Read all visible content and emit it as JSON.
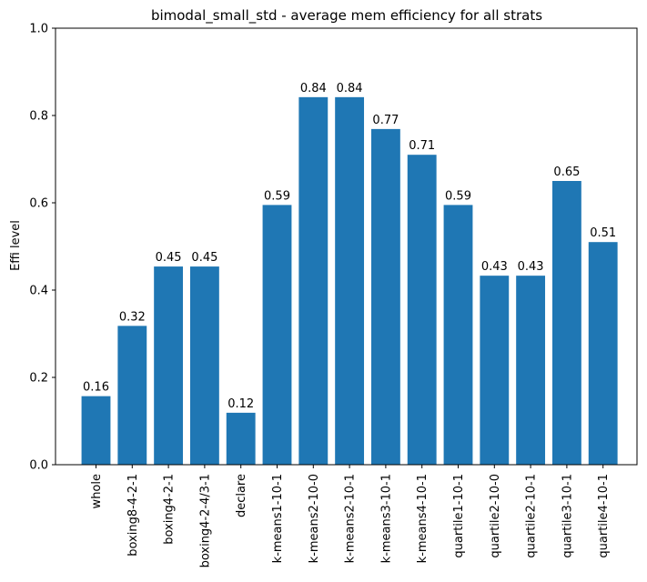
{
  "chart_data": {
    "type": "bar",
    "title": "bimodal_small_std - average mem efficiency for all strats",
    "xlabel": "",
    "ylabel": "Effi level",
    "ylim": [
      0,
      1.0
    ],
    "yticks": [
      "0.0",
      "0.2",
      "0.4",
      "0.6",
      "0.8",
      "1.0"
    ],
    "categories": [
      "whole",
      "boxing8-4-2-1",
      "boxing4-2-1",
      "boxing4-2-4/3-1",
      "declare",
      "k-means1-10-1",
      "k-means2-10-0",
      "k-means2-10-1",
      "k-means3-10-1",
      "k-means4-10-1",
      "quartile1-10-1",
      "quartile2-10-0",
      "quartile2-10-1",
      "quartile3-10-1",
      "quartile4-10-1"
    ],
    "values": [
      0.157,
      0.318,
      0.454,
      0.454,
      0.119,
      0.595,
      0.842,
      0.842,
      0.769,
      0.71,
      0.595,
      0.433,
      0.433,
      0.65,
      0.51
    ],
    "data_labels": [
      "0.16",
      "0.32",
      "0.45",
      "0.45",
      "0.12",
      "0.59",
      "0.84",
      "0.84",
      "0.77",
      "0.71",
      "0.59",
      "0.43",
      "0.43",
      "0.65",
      "0.51"
    ],
    "bar_color": "#1f77b4",
    "grid": false,
    "legend": "none"
  }
}
